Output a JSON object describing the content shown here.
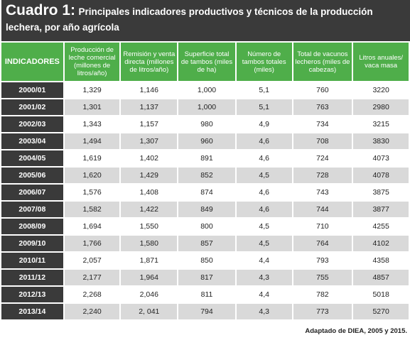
{
  "title": {
    "label": "Cuadro 1:",
    "text": "Principales indicadores productivos y técnicos de la producción lechera, por año agrícola"
  },
  "table": {
    "header": [
      "INDICADORES",
      "Producción de leche comercial (millones de litros/año)",
      "Remisión y venta directa (millones de litros/año)",
      "Superficie total de tambos (miles de ha)",
      "Número de tambos totales (miles)",
      "Total de vacunos lecheros (miles de cabezas)",
      "Litros anuales/ vaca masa"
    ],
    "rows": [
      [
        "2000/01",
        "1,329",
        "1,146",
        "1,000",
        "5,1",
        "760",
        "3220"
      ],
      [
        "2001/02",
        "1,301",
        "1,137",
        "1,000",
        "5,1",
        "763",
        "2980"
      ],
      [
        "2002/03",
        "1,343",
        "1,157",
        "980",
        "4,9",
        "734",
        "3215"
      ],
      [
        "2003/04",
        "1,494",
        "1,307",
        "960",
        "4,6",
        "708",
        "3830"
      ],
      [
        "2004/05",
        "1,619",
        "1,402",
        "891",
        "4,6",
        "724",
        "4073"
      ],
      [
        "2005/06",
        "1,620",
        "1,429",
        "852",
        "4,5",
        "728",
        "4078"
      ],
      [
        "2006/07",
        "1,576",
        "1,408",
        "874",
        "4,6",
        "743",
        "3875"
      ],
      [
        "2007/08",
        "1,582",
        "1,422",
        "849",
        "4,6",
        "744",
        "3877"
      ],
      [
        "2008/09",
        "1,694",
        "1,550",
        "800",
        "4,5",
        "710",
        "4255"
      ],
      [
        "2009/10",
        "1,766",
        "1,580",
        "857",
        "4,5",
        "764",
        "4102"
      ],
      [
        "2010/11",
        "2,057",
        "1,871",
        "850",
        "4,4",
        "793",
        "4358"
      ],
      [
        "2011/12",
        "2,177",
        "1,964",
        "817",
        "4,3",
        "755",
        "4857"
      ],
      [
        "2012/13",
        "2,268",
        "2,046",
        "811",
        "4,4",
        "782",
        "5018"
      ],
      [
        "2013/14",
        "2,240",
        "2, 041",
        "794",
        "4,3",
        "773",
        "5270"
      ]
    ]
  },
  "footer": "Adaptado de DIEA, 2005 y 2015."
}
